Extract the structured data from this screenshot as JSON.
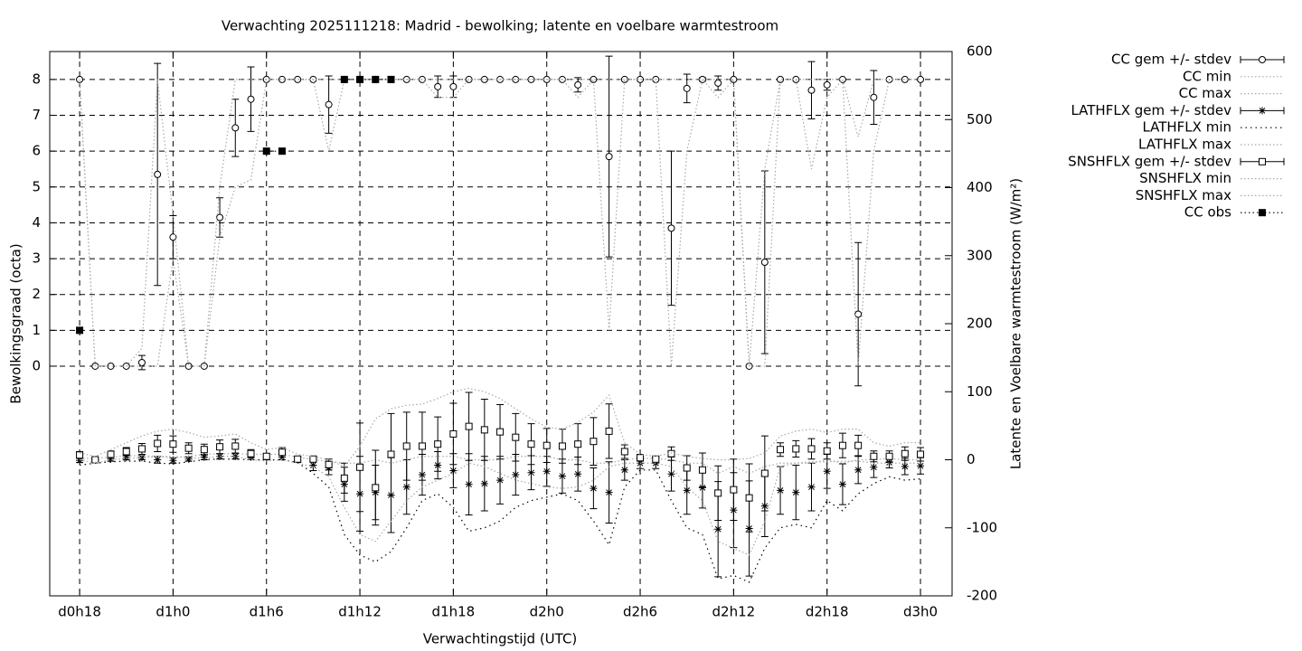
{
  "chart_data": {
    "type": "errorbar",
    "title": "Verwachting 2025111218: Madrid - bewolking; latente en voelbare warmtestroom",
    "xlabel": "Verwachtingstijd (UTC)",
    "ylabel": "Bewolkingsgraad (octa)",
    "y2label": "Latente en Voelbare warmtestroom (W/m²)",
    "x": [
      18,
      19,
      20,
      21,
      22,
      23,
      24,
      25,
      26,
      27,
      28,
      29,
      30,
      31,
      32,
      33,
      34,
      35,
      36,
      37,
      38,
      39,
      40,
      41,
      42,
      43,
      44,
      45,
      46,
      47,
      48,
      49,
      50,
      51,
      52,
      53,
      54,
      55,
      56,
      57,
      58,
      59,
      60,
      61,
      62,
      63,
      64,
      65,
      66,
      67,
      68,
      69,
      70,
      71,
      72
    ],
    "xlim": [
      16.08,
      74.03
    ],
    "xticks": [
      {
        "value": 18,
        "label": "d0h18"
      },
      {
        "value": 24,
        "label": "d1h0"
      },
      {
        "value": 30,
        "label": "d1h6"
      },
      {
        "value": 36,
        "label": "d1h12"
      },
      {
        "value": 42,
        "label": "d1h18"
      },
      {
        "value": 48,
        "label": "d2h0"
      },
      {
        "value": 54,
        "label": "d2h6"
      },
      {
        "value": 60,
        "label": "d2h12"
      },
      {
        "value": 66,
        "label": "d2h18"
      },
      {
        "value": 72,
        "label": "d3h0"
      }
    ],
    "ylim": [
      -6.41,
      8.78
    ],
    "yticks": [
      0,
      1,
      2,
      3,
      4,
      5,
      6,
      7,
      8
    ],
    "y2lim": [
      -200,
      600
    ],
    "y2ticks": [
      -200,
      -100,
      0,
      100,
      200,
      300,
      400,
      500,
      600
    ],
    "grid": true,
    "legend": "outside-right",
    "series": [
      {
        "name": "CC gem +/- stdev",
        "color": "#000000",
        "axis": "y",
        "style": "errorbars",
        "marker": "circle",
        "values": [
          8,
          0,
          0,
          0,
          0.1,
          5.35,
          3.6,
          0,
          0,
          4.15,
          6.65,
          7.45,
          8,
          8,
          8,
          8,
          7.3,
          8,
          8,
          8,
          8,
          8,
          8,
          7.8,
          7.8,
          8,
          8,
          8,
          8,
          8,
          8,
          8,
          7.85,
          8,
          5.85,
          8,
          8,
          8,
          3.85,
          7.75,
          8,
          7.9,
          8,
          0,
          2.9,
          8,
          8,
          7.7,
          7.85,
          8,
          1.45,
          7.5,
          8,
          8,
          8
        ],
        "errors": [
          0,
          0,
          0,
          0,
          0.2,
          3.1,
          0.6,
          0,
          0,
          0.55,
          0.8,
          0.9,
          0,
          0,
          0,
          0,
          0.8,
          0,
          0,
          0,
          0,
          0,
          0,
          0.3,
          0.3,
          0,
          0,
          0,
          0,
          0,
          0,
          0,
          0.2,
          0,
          2.8,
          0,
          0,
          0,
          2.15,
          0.4,
          0.05,
          0.2,
          0,
          0,
          2.55,
          0,
          0,
          0.8,
          0.15,
          0,
          2.0,
          0.75,
          0,
          0,
          0
        ]
      },
      {
        "name": "CC min",
        "color": "#a8a8a8",
        "axis": "y",
        "style": "dotted",
        "values": [
          8,
          0,
          0,
          0,
          0,
          0,
          3,
          0,
          0,
          3.6,
          5,
          5.2,
          8,
          8,
          8,
          8,
          6,
          8,
          8,
          8,
          8,
          8,
          8,
          7.5,
          7.5,
          8,
          8,
          8,
          8,
          8,
          8,
          8,
          7.5,
          8,
          1,
          8,
          8,
          8,
          0,
          6,
          8,
          7.5,
          8,
          0,
          0,
          8,
          8,
          5.5,
          7.5,
          8,
          0,
          6,
          8,
          8,
          8
        ]
      },
      {
        "name": "CC max",
        "color": "#a8a8a8",
        "axis": "y",
        "style": "dotted",
        "values": [
          8,
          0,
          0,
          0,
          0.5,
          8,
          4.2,
          0,
          0,
          5,
          8,
          8,
          8,
          8,
          8,
          8,
          8,
          8,
          8,
          8,
          8,
          8,
          8,
          8,
          8,
          8,
          8,
          8,
          8,
          8,
          8,
          8,
          8,
          8,
          8,
          8,
          8,
          8,
          8,
          8,
          8,
          8,
          8,
          0,
          5.5,
          8,
          8,
          8,
          8,
          8,
          6.4,
          8,
          8,
          8,
          8
        ]
      },
      {
        "name": "LATHFLX gem +/- stdev",
        "color": "#000000",
        "axis": "y2",
        "style": "errorbars",
        "marker": "asterisk",
        "values": [
          -1,
          0,
          1,
          3,
          3,
          0,
          -1,
          1,
          4,
          5,
          5,
          4,
          4,
          4,
          0,
          -8,
          -12,
          -36,
          -50,
          -48,
          -52,
          -40,
          -22,
          -8,
          -16,
          -36,
          -35,
          -30,
          -22,
          -19,
          -17,
          -24,
          -21,
          -42,
          -48,
          -15,
          -5,
          -5,
          -21,
          -45,
          -41,
          -102,
          -74,
          -101,
          -68,
          -45,
          -48,
          -40,
          -17,
          -36,
          -15,
          -11,
          -4,
          -10,
          -9
        ],
        "errors": [
          3,
          2,
          3,
          3,
          3,
          5,
          4,
          3,
          4,
          4,
          4,
          4,
          4,
          4,
          4,
          8,
          10,
          25,
          55,
          40,
          55,
          40,
          30,
          20,
          25,
          45,
          40,
          35,
          30,
          25,
          22,
          25,
          25,
          30,
          45,
          15,
          8,
          8,
          25,
          35,
          30,
          70,
          55,
          70,
          45,
          35,
          40,
          35,
          25,
          30,
          20,
          15,
          8,
          12,
          12
        ]
      },
      {
        "name": "LATHFLX min",
        "color": "#000000",
        "axis": "y2",
        "style": "dotted",
        "values": [
          -8,
          -5,
          -3,
          -2,
          -2,
          -5,
          -6,
          -3,
          0,
          1,
          1,
          0,
          0,
          0,
          -4,
          -20,
          -40,
          -110,
          -140,
          -150,
          -135,
          -100,
          -60,
          -50,
          -70,
          -105,
          -100,
          -90,
          -70,
          -60,
          -55,
          -50,
          -60,
          -90,
          -125,
          -40,
          -15,
          -15,
          -60,
          -100,
          -110,
          -175,
          -170,
          -180,
          -130,
          -100,
          -95,
          -100,
          -60,
          -75,
          -50,
          -35,
          -25,
          -30,
          -28
        ]
      },
      {
        "name": "LATHFLX max",
        "color": "#a8a8a8",
        "axis": "y2",
        "style": "dotted",
        "values": [
          2,
          2,
          4,
          6,
          6,
          5,
          3,
          5,
          8,
          9,
          9,
          8,
          8,
          8,
          4,
          0,
          -2,
          -5,
          -5,
          0,
          -5,
          0,
          5,
          5,
          5,
          0,
          0,
          0,
          5,
          5,
          5,
          0,
          0,
          -5,
          -5,
          0,
          2,
          2,
          0,
          -5,
          -5,
          -20,
          -10,
          -20,
          -10,
          -5,
          -5,
          -5,
          0,
          -5,
          0,
          0,
          2,
          0,
          0
        ]
      },
      {
        "name": "SNSHFLX gem +/- stdev",
        "color": "#000000",
        "axis": "y2",
        "style": "errorbars",
        "marker": "square",
        "values": [
          7,
          0,
          8,
          12,
          16,
          24,
          23,
          17,
          15,
          19,
          20,
          9,
          5,
          11,
          1,
          1,
          -7,
          -27,
          -11,
          -41,
          8,
          20,
          20,
          23,
          38,
          49,
          44,
          41,
          33,
          23,
          21,
          20,
          23,
          27,
          42,
          12,
          3,
          1,
          9,
          -12,
          -15,
          -49,
          -44,
          -56,
          -20,
          15,
          16,
          16,
          13,
          21,
          21,
          5,
          5,
          9,
          8
        ],
        "errors": [
          5,
          2,
          5,
          6,
          8,
          12,
          12,
          8,
          8,
          10,
          10,
          6,
          4,
          7,
          3,
          4,
          8,
          22,
          65,
          55,
          60,
          50,
          50,
          40,
          45,
          50,
          45,
          40,
          35,
          30,
          25,
          25,
          30,
          35,
          40,
          10,
          5,
          3,
          10,
          18,
          25,
          40,
          45,
          50,
          55,
          10,
          12,
          15,
          12,
          18,
          15,
          8,
          8,
          10,
          10
        ]
      },
      {
        "name": "SNSHFLX min",
        "color": "#a8a8a8",
        "axis": "y2",
        "style": "dotted",
        "values": [
          0,
          -5,
          0,
          2,
          3,
          5,
          5,
          3,
          2,
          5,
          5,
          0,
          -2,
          0,
          -5,
          -10,
          -25,
          -70,
          -110,
          -120,
          -90,
          -60,
          -40,
          -30,
          -20,
          -5,
          -10,
          -20,
          -30,
          -35,
          -40,
          -42,
          -40,
          -30,
          -10,
          -5,
          -5,
          -5,
          -10,
          -40,
          -60,
          -120,
          -130,
          -140,
          -90,
          -10,
          -5,
          -3,
          -3,
          -2,
          -2,
          -5,
          -5,
          -5,
          -5
        ]
      },
      {
        "name": "SNSHFLX max",
        "color": "#a8a8a8",
        "axis": "y2",
        "style": "dotted",
        "values": [
          10,
          5,
          15,
          25,
          35,
          42,
          45,
          40,
          33,
          35,
          38,
          25,
          15,
          18,
          8,
          5,
          0,
          -10,
          20,
          60,
          75,
          80,
          82,
          90,
          100,
          105,
          100,
          90,
          75,
          60,
          48,
          45,
          55,
          70,
          95,
          25,
          8,
          5,
          10,
          5,
          2,
          0,
          0,
          2,
          10,
          35,
          42,
          45,
          40,
          45,
          45,
          25,
          20,
          25,
          25
        ]
      },
      {
        "name": "CC obs",
        "color": "#000000",
        "axis": "y",
        "style": "linespoints",
        "marker": "filled-square",
        "values": [
          1,
          null,
          null,
          null,
          null,
          null,
          null,
          null,
          null,
          null,
          null,
          null,
          6,
          6,
          null,
          null,
          null,
          8,
          8,
          8,
          8,
          null,
          null,
          null,
          null,
          null,
          null,
          null,
          null,
          null,
          null,
          null,
          null,
          null,
          null,
          null,
          null,
          null,
          null,
          null,
          null,
          null,
          null,
          null,
          null,
          null,
          null,
          null,
          null,
          null,
          null,
          null,
          null,
          null,
          null
        ]
      }
    ]
  }
}
